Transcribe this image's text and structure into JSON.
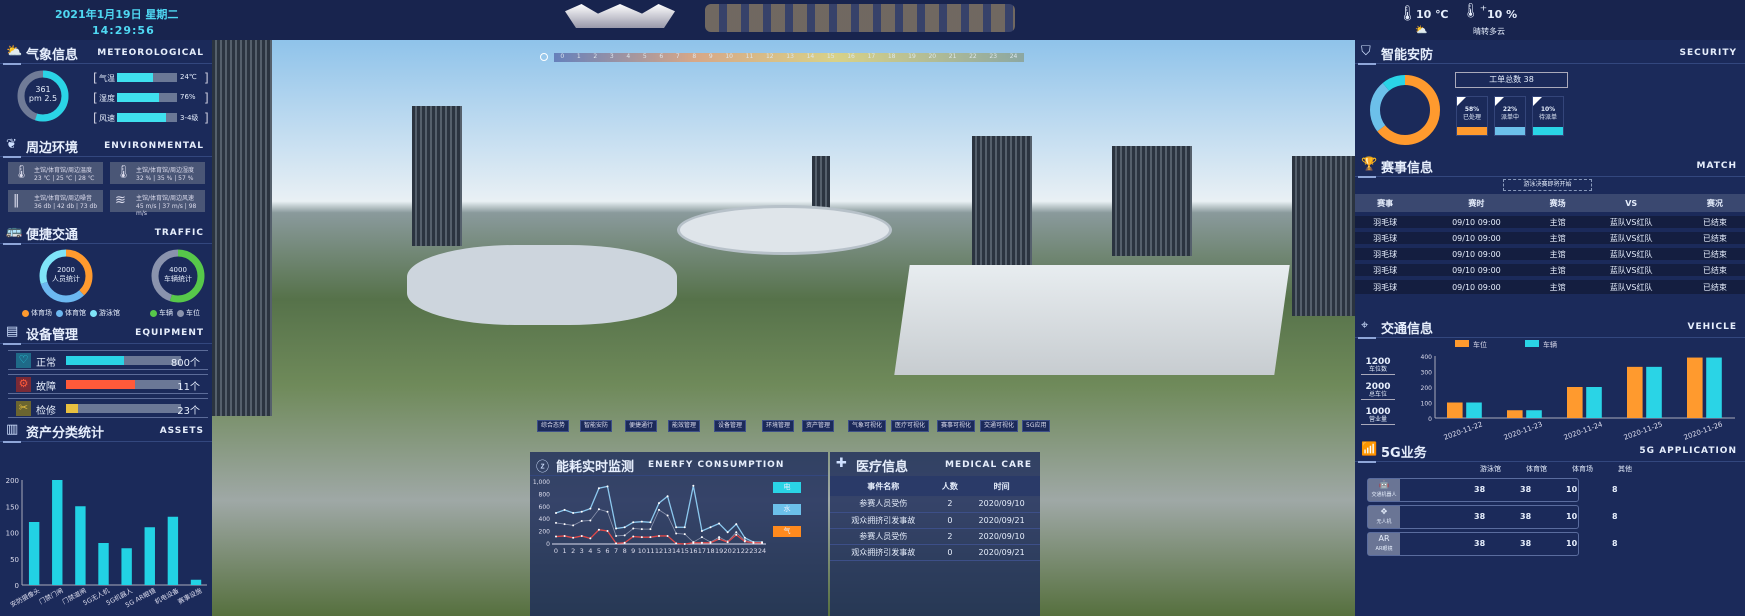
{
  "header": {
    "date": "2021年1月19日 星期二",
    "time": "14:29:56",
    "temp": "10 ℃",
    "humidity": "10 %",
    "weather": "晴转多云"
  },
  "colors": {
    "cyan": "#2ad4e6",
    "orange": "#ff9a2e",
    "lightblue": "#6cc0ea",
    "green": "#57c84a",
    "gray": "#8a93ad"
  },
  "timeline": {
    "ticks": [
      "0",
      "1",
      "2",
      "3",
      "4",
      "5",
      "6",
      "7",
      "8",
      "9",
      "10",
      "11",
      "12",
      "13",
      "14",
      "15",
      "16",
      "17",
      "18",
      "19",
      "20",
      "21",
      "22",
      "23",
      "24"
    ],
    "current": 14
  },
  "meteo": {
    "title": "气象信息",
    "en": "METEOROLOGICAL",
    "aqi": "361",
    "aqi_label": "pm 2.5",
    "aqi_fraction": 0.55,
    "items": [
      {
        "label": "气温",
        "value": "24℃",
        "fill": 0.6
      },
      {
        "label": "湿度",
        "value": "76%",
        "fill": 0.7
      },
      {
        "label": "风速",
        "value": "3-4级",
        "fill": 0.82
      }
    ]
  },
  "env": {
    "title": "周边环境",
    "en": "ENVIRONMENTAL",
    "cards": [
      {
        "icon": "thermometer-icon",
        "label": "主馆/体育馆/周边温度",
        "value": "23 ℃ | 25 ℃ | 28 ℃"
      },
      {
        "icon": "thermometer-icon",
        "label": "主馆/体育馆/周边湿度",
        "value": "32 % | 35 % | 57 %"
      },
      {
        "icon": "sound-wave-icon",
        "label": "主馆/体育馆/周边噪音",
        "value": "36 db | 42 db | 73 db"
      },
      {
        "icon": "wind-icon",
        "label": "主馆/体育馆/周边风速",
        "value": "45 m/s | 37 m/s | 98 m/s"
      }
    ]
  },
  "traffic": {
    "title": "便捷交通",
    "en": "TRAFFIC",
    "people": {
      "value": "2000",
      "label": "人员统计",
      "segments": [
        {
          "name": "体育场",
          "value": 0.38,
          "color": "#ff9a2e"
        },
        {
          "name": "体育馆",
          "value": 0.32,
          "color": "#6cb8f0"
        },
        {
          "name": "游泳馆",
          "value": 0.3,
          "color": "#7fe4f8"
        }
      ]
    },
    "vehicles": {
      "value": "4000",
      "label": "车辆统计",
      "segments": [
        {
          "name": "车辆",
          "value": 0.55,
          "color": "#57c84a"
        },
        {
          "name": "车位",
          "value": 0.45,
          "color": "#8a93ad"
        }
      ]
    }
  },
  "equipment": {
    "title": "设备管理",
    "en": "EQUIPMENT",
    "rows": [
      {
        "label": "正常",
        "value": "800个",
        "fill": 0.5,
        "color": "#2ad4e6"
      },
      {
        "label": "故障",
        "value": "11个",
        "fill": 0.6,
        "color": "#ff5a3a"
      },
      {
        "label": "检修",
        "value": "23个",
        "fill": 0.1,
        "color": "#e8c040"
      }
    ]
  },
  "assets": {
    "title": "资产分类统计",
    "en": "ASSETS"
  },
  "security": {
    "title": "智能安防",
    "en": "SECURITY",
    "total": "工单总数 38",
    "stats": [
      {
        "pct": "58%",
        "label": "已处理",
        "value": 58,
        "color": "#ff9a2e"
      },
      {
        "pct": "22%",
        "label": "派单中",
        "value": 22,
        "color": "#6cc0ea"
      },
      {
        "pct": "10%",
        "label": "待派单",
        "value": 10,
        "color": "#2ad4e6"
      }
    ]
  },
  "match": {
    "title": "赛事信息",
    "en": "MATCH",
    "notice": "游泳决赛即将开始",
    "headers": [
      "赛事",
      "赛时",
      "赛场",
      "VS",
      "赛况"
    ],
    "rows": [
      [
        "羽毛球",
        "09/10 09:00",
        "主馆",
        "蓝队VS红队",
        "已结束"
      ],
      [
        "羽毛球",
        "09/10 09:00",
        "主馆",
        "蓝队VS红队",
        "已结束"
      ],
      [
        "羽毛球",
        "09/10 09:00",
        "主馆",
        "蓝队VS红队",
        "已结束"
      ],
      [
        "羽毛球",
        "09/10 09:00",
        "主馆",
        "蓝队VS红队",
        "已结束"
      ],
      [
        "羽毛球",
        "09/10 09:00",
        "主馆",
        "蓝队VS红队",
        "已结束"
      ]
    ]
  },
  "vehicle": {
    "title": "交通信息",
    "en": "VEHICLE",
    "side": [
      {
        "value": "1200",
        "label": "车位数"
      },
      {
        "value": "2000",
        "label": "总车位"
      },
      {
        "value": "1000",
        "label": "营业量"
      }
    ]
  },
  "g5": {
    "title": "5G业务",
    "en": "5G APPLICATION",
    "headers": [
      "游泳馆",
      "体育馆",
      "体育场",
      "其他"
    ],
    "rows": [
      {
        "icon": "robot-icon",
        "label": "交通机器人",
        "values": [
          "38",
          "38",
          "10",
          "8"
        ]
      },
      {
        "icon": "drone-icon",
        "label": "无人机",
        "values": [
          "38",
          "38",
          "10",
          "8"
        ]
      },
      {
        "icon": "ar-glasses-icon",
        "label": "AR眼镜",
        "values": [
          "38",
          "38",
          "10",
          "8"
        ]
      }
    ]
  },
  "functions": [
    "综合态势",
    "智能安防",
    "便捷通行",
    "能效管理",
    "设备管理",
    "环境管理",
    "资产管理",
    "气象可视化",
    "医疗可视化",
    "赛事可视化",
    "交通可视化",
    "5G应用"
  ],
  "energy": {
    "title": "能耗实时监测",
    "en": "ENERFY CONSUMPTION",
    "legend": [
      "电",
      "水",
      "气"
    ]
  },
  "medical": {
    "title": "医疗信息",
    "en": "MEDICAL CARE",
    "headers": [
      "事件名称",
      "人数",
      "时间"
    ],
    "rows": [
      [
        "参赛人员受伤",
        "2",
        "2020/09/10"
      ],
      [
        "观众拥挤引发事故",
        "0",
        "2020/09/21"
      ],
      [
        "参赛人员受伤",
        "2",
        "2020/09/10"
      ],
      [
        "观众拥挤引发事故",
        "0",
        "2020/09/21"
      ]
    ]
  },
  "chart_data": [
    {
      "type": "bar",
      "title": "资产分类统计",
      "categories": [
        "安防摄像头",
        "门禁门闸",
        "门禁道闸",
        "5G无人机",
        "5G机器人",
        "5G AR眼镜",
        "机电设备",
        "赛事设施"
      ],
      "values": [
        120,
        200,
        150,
        80,
        70,
        110,
        130,
        10
      ],
      "ylim": [
        0,
        200
      ],
      "yticks": [
        "0",
        "50",
        "100",
        "150",
        "200"
      ]
    },
    {
      "type": "bar",
      "title": "交通信息",
      "categories": [
        "2020-11-22",
        "2020-11-23",
        "2020-11-24",
        "2020-11-25",
        "2020-11-26"
      ],
      "series": [
        {
          "name": "车位",
          "values": [
            100,
            50,
            200,
            330,
            390
          ],
          "color": "#ff9a2e"
        },
        {
          "name": "车辆",
          "values": [
            100,
            50,
            200,
            330,
            390
          ],
          "color": "#2ad4e6"
        }
      ],
      "ylim": [
        0,
        400
      ],
      "yticks": [
        "0",
        "100",
        "200",
        "300",
        "400"
      ],
      "legend": "top"
    },
    {
      "type": "line",
      "title": "能耗实时监测",
      "x": [
        "0",
        "1",
        "2",
        "3",
        "4",
        "5",
        "6",
        "7",
        "8",
        "9",
        "10",
        "11",
        "12",
        "13",
        "14",
        "15",
        "16",
        "17",
        "18",
        "19",
        "20",
        "21",
        "22",
        "23",
        "24"
      ],
      "series": [
        {
          "values": [
            500,
            550,
            500,
            520,
            570,
            900,
            930,
            250,
            270,
            350,
            360,
            350,
            660,
            770,
            270,
            270,
            940,
            210,
            270,
            330,
            190,
            320,
            100,
            30,
            30
          ],
          "color": "#8cc8ee"
        },
        {
          "values": [
            340,
            320,
            300,
            370,
            380,
            560,
            520,
            130,
            140,
            250,
            240,
            240,
            550,
            460,
            170,
            160,
            30,
            110,
            30,
            110,
            40,
            190,
            60,
            20,
            20
          ],
          "color": "#8a93ad"
        },
        {
          "values": [
            120,
            130,
            100,
            130,
            90,
            230,
            210,
            10,
            20,
            120,
            110,
            110,
            130,
            130,
            10,
            0,
            20,
            20,
            20,
            80,
            30,
            150,
            40,
            20,
            20
          ],
          "color": "#e04848"
        }
      ],
      "ylim": [
        0,
        1000
      ],
      "yticks": [
        "0",
        "200",
        "400",
        "600",
        "800",
        "1,000"
      ]
    }
  ]
}
